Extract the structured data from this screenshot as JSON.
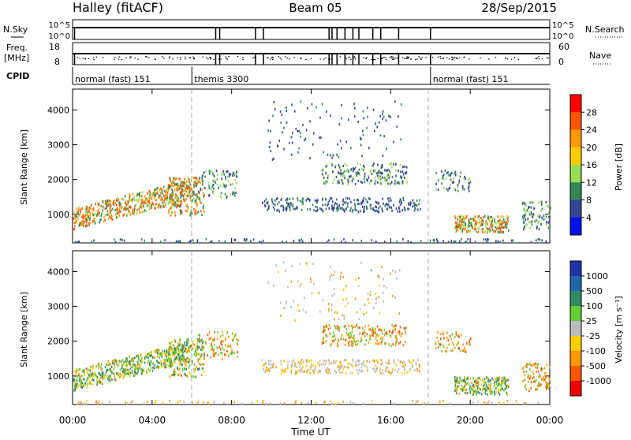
{
  "header": {
    "station": "Halley (fitACF)",
    "beam": "Beam 05",
    "date": "28/Sep/2015"
  },
  "top_panels": {
    "nsky_label": "N.Sky",
    "nsearch_label": "N.Search",
    "nsky_ticks": [
      "10^5",
      "10^0"
    ],
    "nsearch_ticks": [
      "10^5",
      "10^0"
    ],
    "freq_label_line1": "Freq.",
    "freq_label_line2": "[MHz]",
    "freq_ticks": [
      "18",
      "8"
    ],
    "nave_label": "Nave",
    "nave_ticks": [
      "60",
      "0"
    ],
    "cpid_label": "CPID",
    "cpid_segments": [
      {
        "label": "normal (fast) 151",
        "start_hour": 0
      },
      {
        "label": "themis 3300",
        "start_hour": 6
      },
      {
        "label": "normal (fast) 151",
        "start_hour": 18
      }
    ]
  },
  "chart_data": [
    {
      "type": "heatmap",
      "name": "power",
      "ylabel": "Slant Range [km]",
      "xlim_hours": [
        0,
        24
      ],
      "ylim_km": [
        180,
        4600
      ],
      "yticks": [
        1000,
        2000,
        3000,
        4000
      ],
      "colorbar": {
        "label": "Power [dB]",
        "ticks": [
          "28",
          "24",
          "20",
          "16",
          "12",
          "8",
          "4"
        ],
        "colors": [
          "#ff0000",
          "#ff5500",
          "#ff9900",
          "#ffcc00",
          "#99dd55",
          "#338855",
          "#334499",
          "#0011ee"
        ]
      }
    },
    {
      "type": "heatmap",
      "name": "velocity",
      "ylabel": "Slant Range [km]",
      "xlim_hours": [
        0,
        24
      ],
      "ylim_km": [
        180,
        4600
      ],
      "yticks": [
        1000,
        2000,
        3000,
        4000
      ],
      "xlabel": "Time UT",
      "xticks": [
        "00:00",
        "04:00",
        "08:00",
        "12:00",
        "16:00",
        "20:00",
        "00:00"
      ],
      "colorbar": {
        "label": "Velocity [m s⁻¹]",
        "ticks": [
          "1000",
          "500",
          "100",
          "25",
          "-25",
          "-100",
          "-500",
          "-1000"
        ],
        "colors": [
          "#2233aa",
          "#2266aa",
          "#338866",
          "#66cc33",
          "#bbbbbb",
          "#ffcc00",
          "#ff9900",
          "#ff5500",
          "#ee0000"
        ]
      }
    }
  ]
}
